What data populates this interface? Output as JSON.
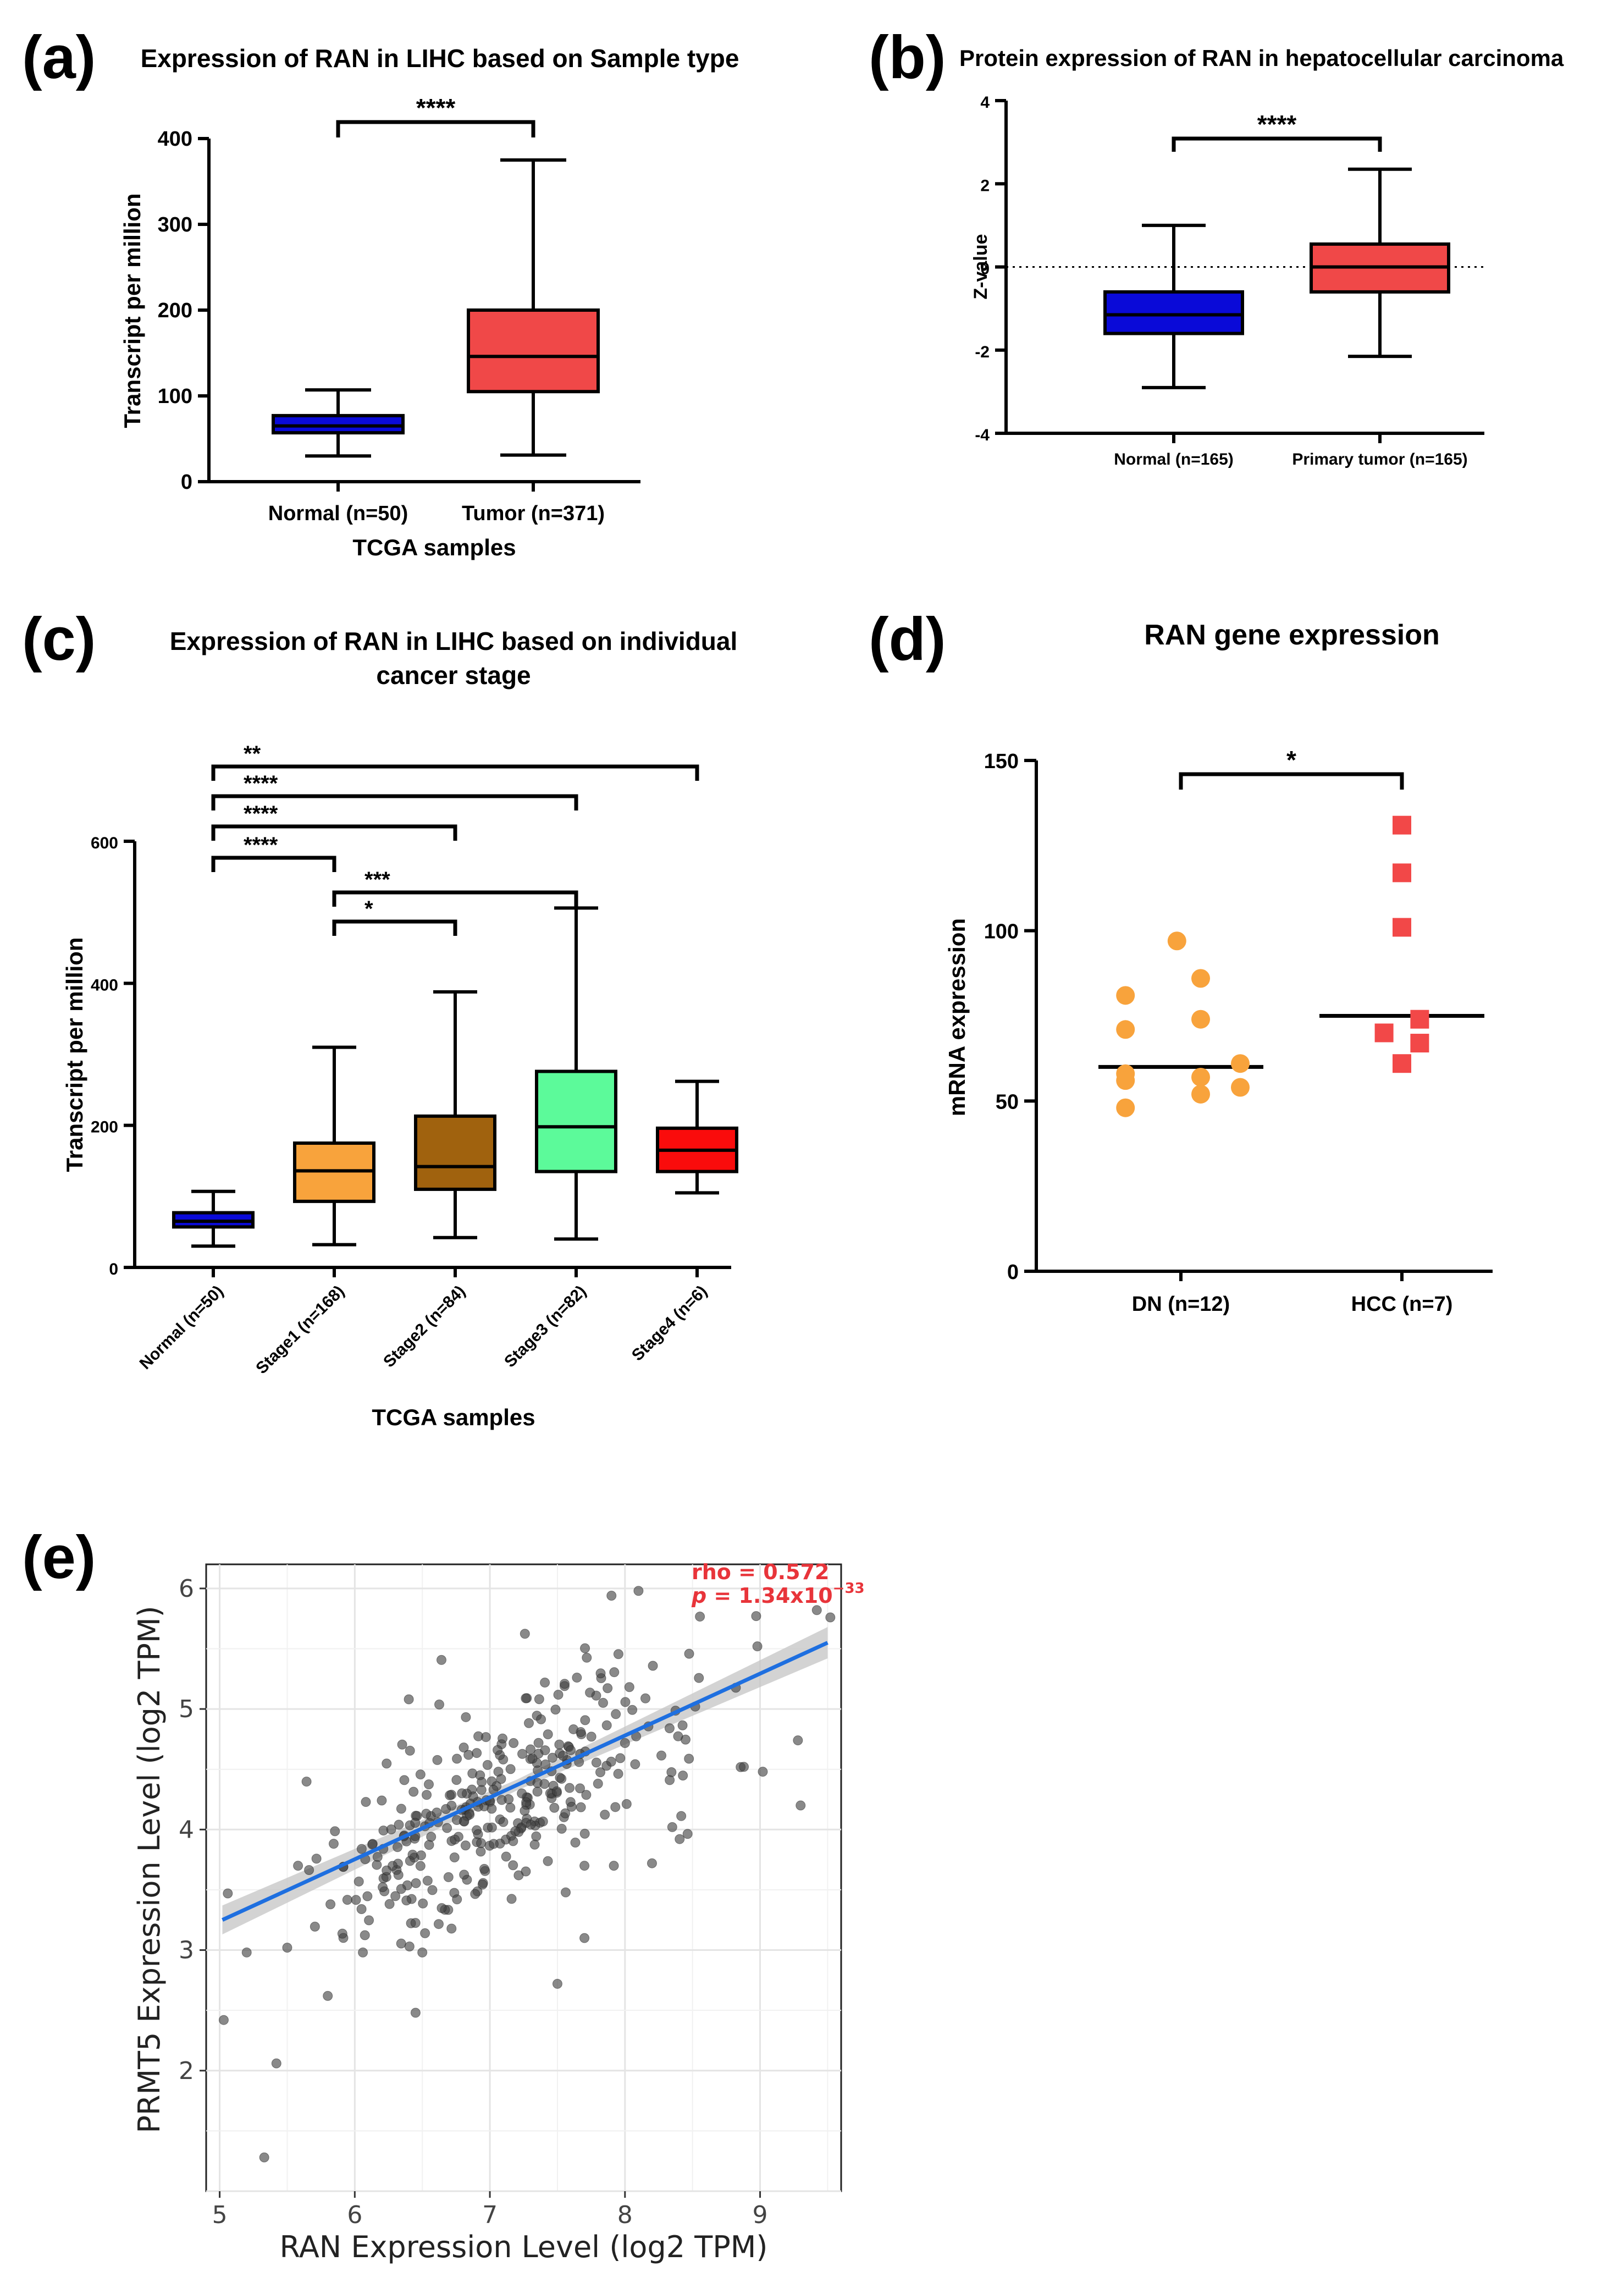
{
  "chart_data": [
    {
      "panel": "(a)",
      "type": "box",
      "title": "Expression of RAN in LIHC based on Sample type",
      "xlabel": "TCGA samples",
      "ylabel": "Transcript per million",
      "ylim": [
        0,
        400
      ],
      "yticks": [
        0,
        100,
        200,
        300,
        400
      ],
      "categories": [
        "Normal (n=50)",
        "Tumor (n=371)"
      ],
      "boxes": [
        {
          "min": 30,
          "q1": 57,
          "median": 65,
          "q3": 77,
          "max": 107,
          "color": "#0a0ad8"
        },
        {
          "min": 31,
          "q1": 105,
          "median": 146,
          "q3": 200,
          "max": 375,
          "color": "#f04848"
        }
      ],
      "brackets": [
        {
          "from": 0,
          "to": 1,
          "label": "****"
        }
      ]
    },
    {
      "panel": "(b)",
      "type": "box",
      "title": "Protein expression of RAN in hepatocellular carcinoma",
      "xlabel": "",
      "ylabel": "Z-value",
      "ylim": [
        -4,
        4
      ],
      "yticks": [
        -4,
        -2,
        0,
        2,
        4
      ],
      "ytick_labels": [
        "-4",
        "-2",
        "0",
        "2",
        "4"
      ],
      "categories": [
        "Normal (n=165)",
        "Primary tumor (n=165)"
      ],
      "boxes": [
        {
          "min": -2.9,
          "q1": -1.6,
          "median": -1.15,
          "q3": -0.6,
          "max": 1.0,
          "color": "#0a0ad8"
        },
        {
          "min": -2.15,
          "q1": -0.6,
          "median": 0.0,
          "q3": 0.55,
          "max": 2.35,
          "color": "#f04848"
        }
      ],
      "reference_line": 0,
      "brackets": [
        {
          "from": 0,
          "to": 1,
          "label": "****"
        }
      ]
    },
    {
      "panel": "(c)",
      "type": "box",
      "title": [
        "Expression of RAN in LIHC based on individual",
        "cancer stage"
      ],
      "xlabel": "TCGA samples",
      "ylabel": "Transcript per million",
      "ylim": [
        0,
        600
      ],
      "yticks": [
        0,
        200,
        400,
        600
      ],
      "categories": [
        "Normal (n=50)",
        "Stage1 (n=168)",
        "Stage2 (n=84)",
        "Stage3 (n=82)",
        "Stage4 (n=6)"
      ],
      "boxes": [
        {
          "min": 30,
          "q1": 57,
          "median": 65,
          "q3": 77,
          "max": 107,
          "color": "#0a0ad8"
        },
        {
          "min": 32,
          "q1": 93,
          "median": 136,
          "q3": 175,
          "max": 310,
          "color": "#f8a33c"
        },
        {
          "min": 42,
          "q1": 110,
          "median": 142,
          "q3": 213,
          "max": 388,
          "color": "#a0620e"
        },
        {
          "min": 40,
          "q1": 135,
          "median": 198,
          "q3": 276,
          "max": 506,
          "color": "#5cfa9a"
        },
        {
          "min": 105,
          "q1": 135,
          "median": 165,
          "q3": 196,
          "max": 262,
          "color": "#fa0c0c"
        }
      ],
      "brackets": [
        {
          "from": 0,
          "to": 4,
          "label": "**"
        },
        {
          "from": 0,
          "to": 3,
          "label": "****"
        },
        {
          "from": 0,
          "to": 2,
          "label": "****"
        },
        {
          "from": 0,
          "to": 1,
          "label": "****"
        },
        {
          "from": 1,
          "to": 3,
          "label": "***"
        },
        {
          "from": 1,
          "to": 2,
          "label": "*"
        }
      ]
    },
    {
      "panel": "(d)",
      "type": "scatter",
      "title": "RAN gene expression",
      "xlabel": "",
      "ylabel": "mRNA expression",
      "ylim": [
        0,
        150
      ],
      "yticks": [
        0,
        50,
        100,
        150
      ],
      "categories": [
        "DN (n=12)",
        "HCC (n=7)"
      ],
      "series": [
        {
          "name": "DN (n=12)",
          "color": "#f8a33c",
          "marker": "circle",
          "mean": 60,
          "points": [
            {
              "dx": -0.02,
              "y": 97
            },
            {
              "dx": -0.28,
              "y": 81
            },
            {
              "dx": 0.1,
              "y": 86
            },
            {
              "dx": 0.1,
              "y": 74
            },
            {
              "dx": -0.28,
              "y": 71
            },
            {
              "dx": -0.28,
              "y": 58
            },
            {
              "dx": 0.1,
              "y": 57
            },
            {
              "dx": -0.28,
              "y": 56
            },
            {
              "dx": 0.3,
              "y": 61
            },
            {
              "dx": 0.3,
              "y": 54
            },
            {
              "dx": 0.1,
              "y": 52
            },
            {
              "dx": -0.28,
              "y": 48
            }
          ]
        },
        {
          "name": "HCC (n=7)",
          "color": "#f24848",
          "marker": "square",
          "mean": 75,
          "points": [
            {
              "dx": 0.0,
              "y": 131
            },
            {
              "dx": 0.0,
              "y": 117
            },
            {
              "dx": 0.0,
              "y": 101
            },
            {
              "dx": 0.09,
              "y": 74
            },
            {
              "dx": -0.09,
              "y": 70
            },
            {
              "dx": 0.09,
              "y": 67
            },
            {
              "dx": 0.0,
              "y": 61
            }
          ]
        }
      ],
      "brackets": [
        {
          "from": 0,
          "to": 1,
          "label": "*"
        }
      ]
    },
    {
      "panel": "(e)",
      "type": "scatter",
      "title": "",
      "xlabel": "RAN Expression Level (log2 TPM)",
      "ylabel": "PRMT5 Expression Level (log2 TPM)",
      "xlim": [
        4.9,
        9.6
      ],
      "ylim": [
        1.0,
        6.2
      ],
      "xticks": [
        5,
        6,
        7,
        8,
        9
      ],
      "yticks": [
        2,
        3,
        4,
        5,
        6
      ],
      "annotation": {
        "rho": "rho = 0.572",
        "p_prefix": "p",
        "p_value": " = 1.34x10",
        "p_exp": "−33"
      },
      "regression": {
        "x0": 5.02,
        "y0": 3.25,
        "x1": 9.5,
        "y1": 5.55
      },
      "outliers": [
        [
          5.03,
          2.42
        ],
        [
          5.42,
          2.06
        ],
        [
          5.33,
          1.28
        ],
        [
          5.2,
          2.98
        ],
        [
          5.5,
          3.02
        ],
        [
          5.06,
          3.47
        ],
        [
          5.8,
          2.62
        ],
        [
          6.06,
          2.98
        ],
        [
          6.45,
          2.48
        ],
        [
          6.5,
          2.98
        ],
        [
          6.52,
          3.14
        ],
        [
          7.5,
          2.72
        ],
        [
          7.7,
          3.1
        ],
        [
          9.3,
          4.2
        ],
        [
          9.28,
          4.74
        ],
        [
          9.02,
          4.48
        ],
        [
          8.88,
          4.52
        ],
        [
          8.1,
          5.98
        ],
        [
          7.9,
          5.94
        ],
        [
          9.42,
          5.82
        ],
        [
          9.52,
          5.76
        ],
        [
          8.52,
          5.02
        ],
        [
          8.98,
          5.52
        ],
        [
          6.4,
          5.08
        ],
        [
          6.05,
          3.34
        ],
        [
          7.7,
          3.7
        ],
        [
          8.2,
          3.72
        ],
        [
          8.35,
          4.02
        ],
        [
          5.58,
          3.7
        ],
        [
          5.82,
          3.38
        ]
      ],
      "cloud": {
        "n": 340,
        "seed": 7,
        "x_mean": 7.05,
        "x_sd": 0.78,
        "slope": 0.51,
        "intercept": 0.63,
        "resid_sd": 0.42
      }
    }
  ]
}
